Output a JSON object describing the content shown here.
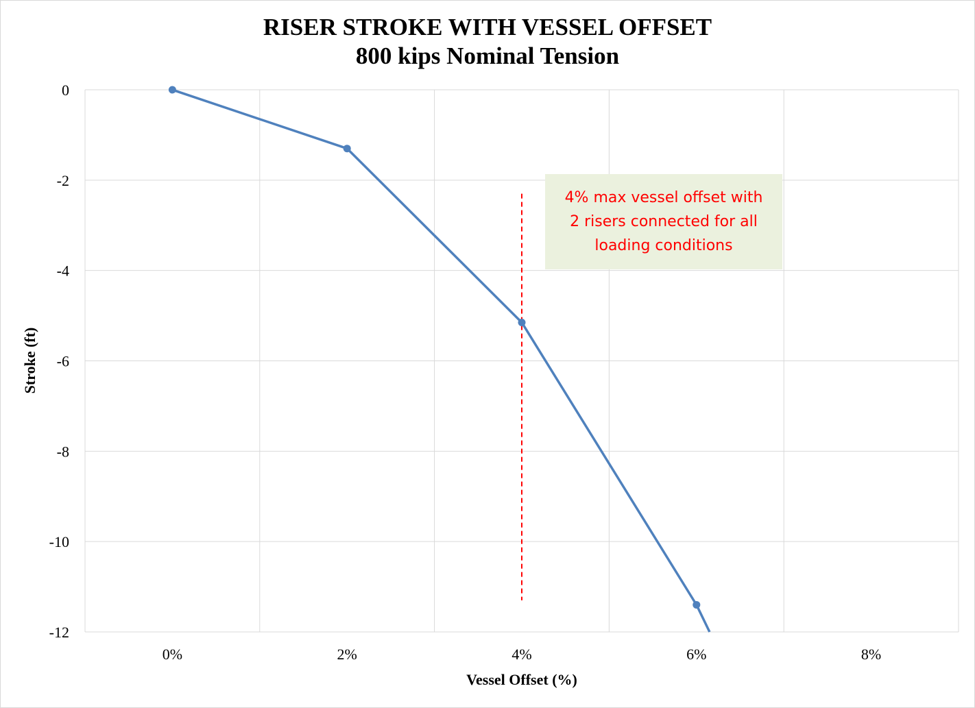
{
  "chart_data": {
    "type": "line",
    "title": "RISER STROKE WITH VESSEL OFFSET",
    "subtitle": "800 kips Nominal Tension",
    "xlabel": "Vessel Offset (%)",
    "ylabel": "Stroke (ft)",
    "xlim": [
      -1,
      9
    ],
    "ylim": [
      -12,
      0
    ],
    "x_ticks": [
      0,
      2,
      4,
      6,
      8
    ],
    "x_tick_labels": [
      "0%",
      "2%",
      "4%",
      "6%",
      "8%"
    ],
    "y_ticks": [
      0,
      -2,
      -4,
      -6,
      -8,
      -10,
      -12
    ],
    "y_tick_labels": [
      "0",
      "-2",
      "-4",
      "-6",
      "-8",
      "-10",
      "-12"
    ],
    "grid": true,
    "series": [
      {
        "color": "#4f81bd",
        "x": [
          0,
          2,
          4,
          6,
          6.15
        ],
        "y": [
          0,
          -1.3,
          -5.15,
          -11.4,
          -12
        ],
        "markers": [
          true,
          true,
          true,
          true,
          false
        ]
      }
    ],
    "reference_line": {
      "x": 4,
      "y_range": [
        -2.3,
        -11.3
      ],
      "color": "#ff0000",
      "style": "dashed"
    },
    "annotation": {
      "text": "4% max vessel offset with\n2 risers connected  for all\nloading conditions",
      "color": "#ff0000",
      "background": "#ebf1de"
    }
  }
}
